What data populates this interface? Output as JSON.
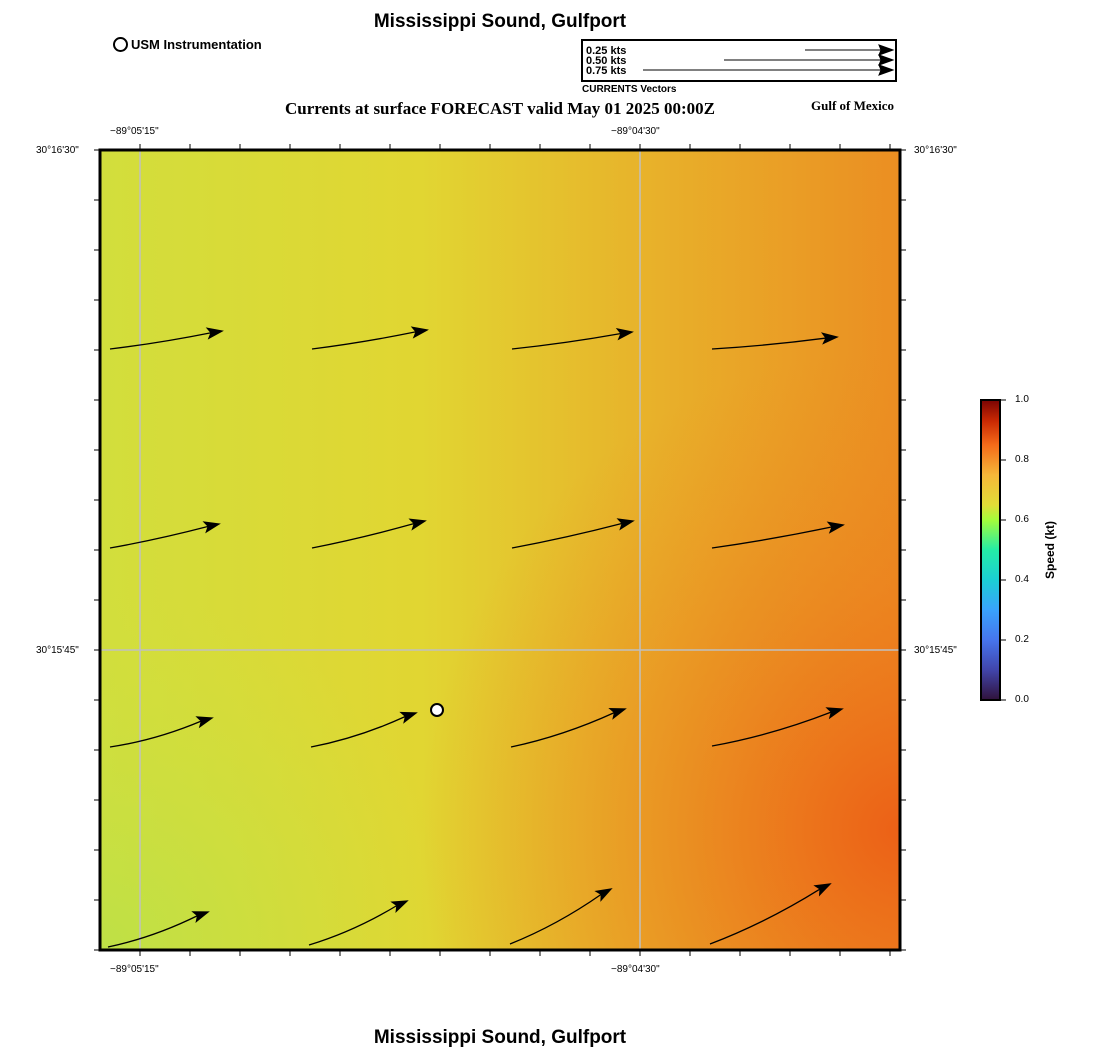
{
  "header": {
    "title": "Mississippi Sound, Gulfport",
    "subtitle": "Currents at surface FORECAST valid May 01 2025 00:00Z",
    "region": "Gulf of Mexico",
    "footer_title": "Mississippi Sound, Gulfport"
  },
  "station_legend": {
    "label": "USM Instrumentation"
  },
  "vector_legend": {
    "items": [
      "0.25 kts",
      "0.50 kts",
      "0.75 kts"
    ],
    "caption": "CURRENTS Vectors"
  },
  "axes": {
    "lon_labels": [
      "−89°05'15\"",
      "−89°04'30\""
    ],
    "lat_labels": [
      "30°16'30\"",
      "30°15'45\""
    ]
  },
  "colorbar": {
    "label": "Speed (kt)",
    "ticks": [
      "1.0",
      "0.8",
      "0.6",
      "0.4",
      "0.2",
      "0.0"
    ],
    "min": 0.0,
    "max": 1.0
  },
  "colors": {
    "field_low": "#c2df45",
    "field_mid": "#e3d630",
    "field_high": "#ec6418",
    "grid": "#c0c0c0",
    "arrow": "#000000"
  }
}
